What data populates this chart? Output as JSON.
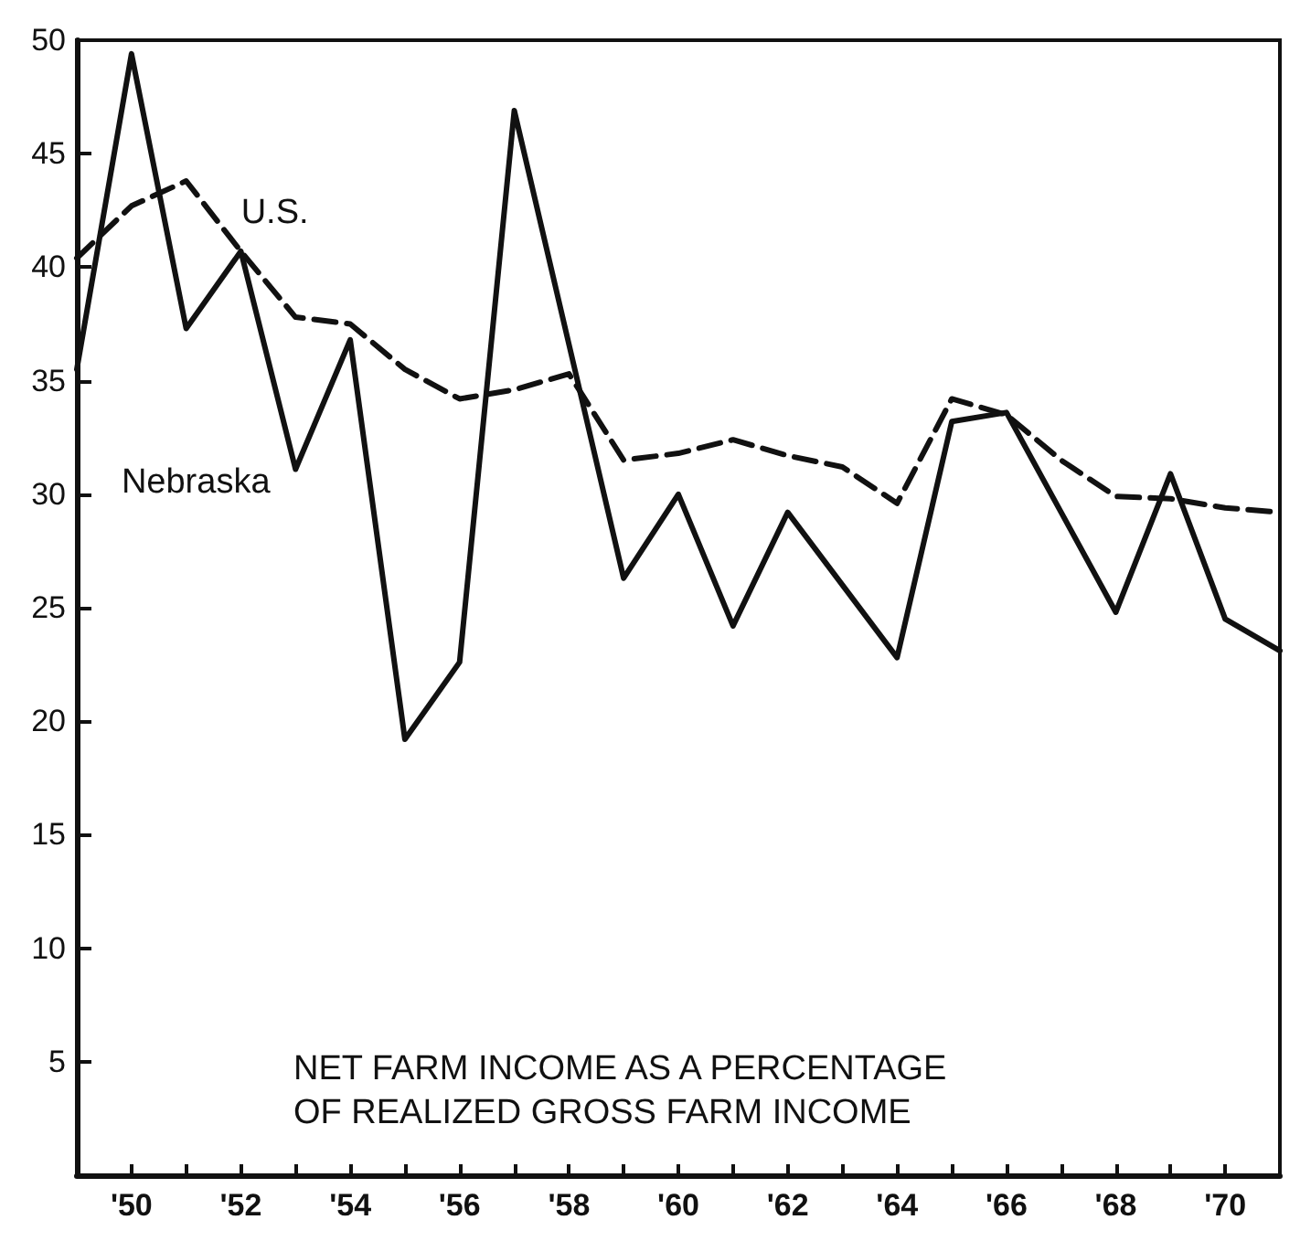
{
  "chart_data": {
    "type": "line",
    "title": "NET FARM INCOME AS A PERCENTAGE OF REALIZED GROSS FARM INCOME",
    "x": [
      1949,
      1950,
      1951,
      1952,
      1953,
      1954,
      1955,
      1956,
      1957,
      1958,
      1959,
      1960,
      1961,
      1962,
      1963,
      1964,
      1965,
      1966,
      1967,
      1968,
      1969,
      1970,
      1971
    ],
    "series": [
      {
        "name": "U.S.",
        "color": "#111111",
        "line_style": "dashed",
        "values": [
          40.4,
          42.7,
          43.8,
          40.7,
          37.8,
          37.5,
          35.5,
          34.2,
          34.6,
          35.3,
          31.5,
          31.8,
          32.4,
          31.7,
          31.2,
          29.6,
          34.2,
          33.5,
          31.5,
          29.9,
          29.8,
          29.4,
          29.2
        ]
      },
      {
        "name": "Nebraska",
        "color": "#111111",
        "line_style": "solid",
        "values": [
          35.5,
          49.4,
          37.3,
          40.7,
          31.1,
          36.8,
          19.2,
          22.6,
          46.9,
          36.6,
          26.3,
          30.0,
          24.2,
          29.2,
          26.0,
          22.8,
          33.2,
          33.6,
          29.2,
          24.8,
          30.9,
          24.5,
          23.1
        ]
      }
    ],
    "xlim": [
      1949,
      1971
    ],
    "xticks": [
      {
        "value": 1950,
        "label": "'50"
      },
      {
        "value": 1951,
        "label": null
      },
      {
        "value": 1952,
        "label": "'52"
      },
      {
        "value": 1953,
        "label": null
      },
      {
        "value": 1954,
        "label": "'54"
      },
      {
        "value": 1955,
        "label": null
      },
      {
        "value": 1956,
        "label": "'56"
      },
      {
        "value": 1957,
        "label": null
      },
      {
        "value": 1958,
        "label": "'58"
      },
      {
        "value": 1959,
        "label": null
      },
      {
        "value": 1960,
        "label": "'60"
      },
      {
        "value": 1961,
        "label": null
      },
      {
        "value": 1962,
        "label": "'62"
      },
      {
        "value": 1963,
        "label": null
      },
      {
        "value": 1964,
        "label": "'64"
      },
      {
        "value": 1965,
        "label": null
      },
      {
        "value": 1966,
        "label": "'66"
      },
      {
        "value": 1967,
        "label": null
      },
      {
        "value": 1968,
        "label": "'68"
      },
      {
        "value": 1969,
        "label": null
      },
      {
        "value": 1970,
        "label": "'70"
      }
    ],
    "ylim": [
      0,
      50
    ],
    "yticks": [
      5,
      10,
      15,
      20,
      25,
      30,
      35,
      40,
      45,
      50
    ],
    "grid": false,
    "legend": false,
    "marker": "none"
  }
}
